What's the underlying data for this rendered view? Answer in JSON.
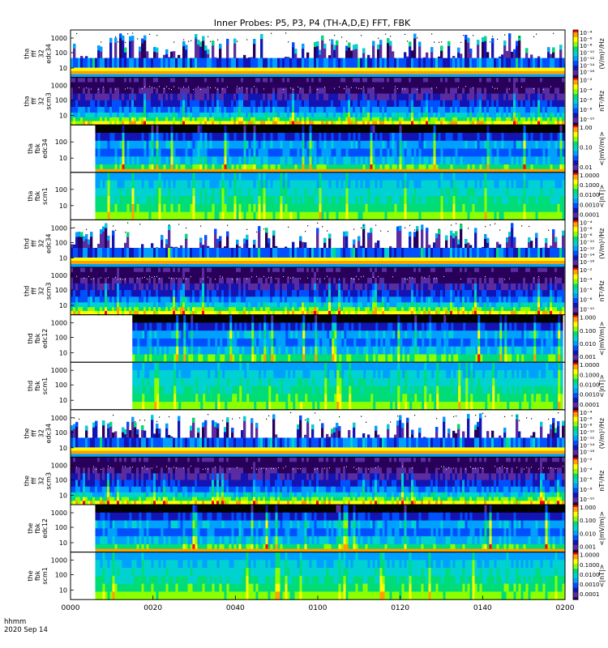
{
  "chart_data": {
    "type": "heatmap",
    "title": "Inner Probes: P5, P3, P4 (TH-A,D,E) FFT, FBK",
    "x_axis": {
      "ticks": [
        "0000",
        "0020",
        "0040",
        "0100",
        "0120",
        "0140",
        "0200"
      ],
      "label_line1": "hhmm",
      "label_line2": "2020 Sep 14"
    },
    "panels": [
      {
        "kind": "fft_e",
        "ylabel": [
          "tha",
          "fff",
          "32",
          "edc34"
        ],
        "yticks": [
          "1000",
          "100",
          "10"
        ],
        "cb_unit": "(V/m)²/Hz",
        "cb_labels": [
          "10⁻⁴",
          "10⁻⁶",
          "10⁻⁸",
          "10⁻¹⁰",
          "10⁻¹²",
          "10⁻¹⁴",
          "10⁻¹⁶"
        ],
        "data_start_hhmm": "0000"
      },
      {
        "kind": "fft_b",
        "ylabel": [
          "tha",
          "fff",
          "32",
          "scm3"
        ],
        "yticks": [
          "1000",
          "100",
          "10"
        ],
        "cb_unit": "nT²/Hz",
        "cb_labels": [
          "10⁻²",
          "10⁻⁴",
          "10⁻⁶",
          "10⁻⁸",
          "10⁻¹⁰"
        ],
        "data_start_hhmm": "0000"
      },
      {
        "kind": "fbk_e",
        "ylabel": [
          "tha",
          "fbk",
          "edc34"
        ],
        "yticks": [
          "100",
          "10"
        ],
        "cb_unit": "<|mV/m|>",
        "cb_labels": [
          "1.00",
          "0.10",
          "0.01"
        ],
        "data_start_hhmm": "0006"
      },
      {
        "kind": "fbk_b",
        "ylabel": [
          "tha",
          "fbk",
          "scm1"
        ],
        "yticks": [
          "100",
          "10"
        ],
        "cb_unit": "<|nT|>",
        "cb_labels": [
          "1.0000",
          "0.1000",
          "0.0100",
          "0.0010",
          "0.0001"
        ],
        "data_start_hhmm": "0006"
      },
      {
        "kind": "fft_e",
        "ylabel": [
          "thd",
          "fff",
          "32",
          "edc34"
        ],
        "yticks": [
          "1000",
          "100",
          "10"
        ],
        "cb_unit": "(V/m)²/Hz",
        "cb_labels": [
          "10⁻⁴",
          "10⁻⁶",
          "10⁻⁸",
          "10⁻¹⁰",
          "10⁻¹²",
          "10⁻¹⁴",
          "10⁻¹⁶"
        ],
        "data_start_hhmm": "0000"
      },
      {
        "kind": "fft_b",
        "ylabel": [
          "thd",
          "fff",
          "32",
          "scm3"
        ],
        "yticks": [
          "1000",
          "100",
          "10"
        ],
        "cb_unit": "nT²/Hz",
        "cb_labels": [
          "10⁻²",
          "10⁻⁴",
          "10⁻⁶",
          "10⁻⁸",
          "10⁻¹⁰"
        ],
        "data_start_hhmm": "0000"
      },
      {
        "kind": "fbk_e",
        "ylabel": [
          "thd",
          "fbk",
          "edc12"
        ],
        "yticks": [
          "1000",
          "100",
          "10"
        ],
        "cb_unit": "<|mV/m|>",
        "cb_labels": [
          "1.000",
          "0.100",
          "0.010",
          "0.001"
        ],
        "data_start_hhmm": "0015"
      },
      {
        "kind": "fbk_b",
        "ylabel": [
          "thd",
          "fbk",
          "scm1"
        ],
        "yticks": [
          "1000",
          "100",
          "10"
        ],
        "cb_unit": "<|nT|>",
        "cb_labels": [
          "1.0000",
          "0.1000",
          "0.0100",
          "0.0010",
          "0.0001"
        ],
        "data_start_hhmm": "0015"
      },
      {
        "kind": "fft_e",
        "ylabel": [
          "the",
          "fff",
          "32",
          "edc34"
        ],
        "yticks": [
          "1000",
          "100",
          "10"
        ],
        "cb_unit": "(V/m)²/Hz",
        "cb_labels": [
          "10⁻⁴",
          "10⁻⁶",
          "10⁻⁸",
          "10⁻¹⁰",
          "10⁻¹²",
          "10⁻¹⁴",
          "10⁻¹⁶"
        ],
        "data_start_hhmm": "0000"
      },
      {
        "kind": "fft_b",
        "ylabel": [
          "the",
          "fff",
          "32",
          "scm3"
        ],
        "yticks": [
          "1000",
          "100",
          "10"
        ],
        "cb_unit": "nT²/Hz",
        "cb_labels": [
          "10⁻²",
          "10⁻⁴",
          "10⁻⁶",
          "10⁻⁸",
          "10⁻¹⁰"
        ],
        "data_start_hhmm": "0000"
      },
      {
        "kind": "fbk_e",
        "ylabel": [
          "the",
          "fbk",
          "edc12"
        ],
        "yticks": [
          "1000",
          "100",
          "10"
        ],
        "cb_unit": "<|mV/m|>",
        "cb_labels": [
          "1.000",
          "0.100",
          "0.010",
          "0.001"
        ],
        "data_start_hhmm": "0006"
      },
      {
        "kind": "fbk_b",
        "ylabel": [
          "the",
          "fbk",
          "scm1"
        ],
        "yticks": [
          "1000",
          "100",
          "10"
        ],
        "cb_unit": "<|nT|>",
        "cb_labels": [
          "1.0000",
          "0.1000",
          "0.0100",
          "0.0010",
          "0.0001"
        ],
        "data_start_hhmm": "0006"
      }
    ],
    "colormap": [
      "#ffffff",
      "#000000",
      "#28005a",
      "#5a2ca0",
      "#1414b4",
      "#0050ff",
      "#00a0ff",
      "#00d2d2",
      "#00dc78",
      "#8cff00",
      "#ffff00",
      "#ffa000",
      "#ff0000"
    ]
  }
}
